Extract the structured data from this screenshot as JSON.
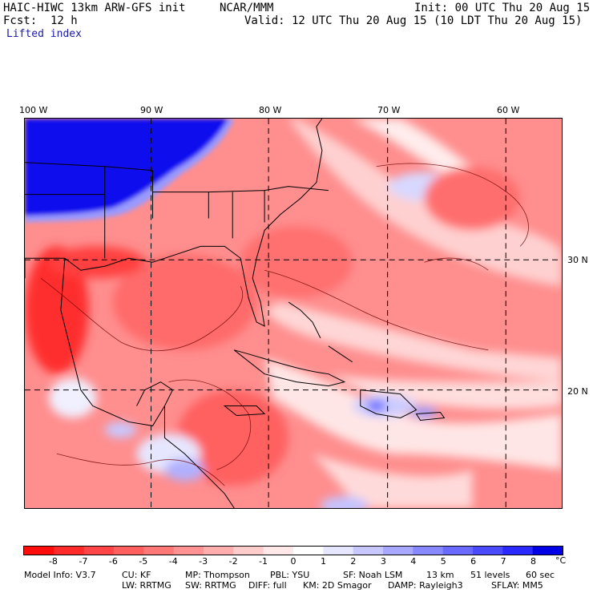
{
  "header": {
    "model": "HAIC-HIWC 13km ARW-GFS init",
    "org": "NCAR/MMM",
    "init": "Init: 00 UTC Thu 20 Aug 15",
    "fcst": "Fcst:  12 h",
    "valid": "Valid: 12 UTC Thu 20 Aug 15 (10 LDT Thu 20 Aug 15)",
    "field": "Lifted index"
  },
  "map": {
    "lon_labels": [
      "100 W",
      "90 W",
      "80 W",
      "70 W",
      "60 W"
    ],
    "lat_labels": [
      "30 N",
      "20 N"
    ]
  },
  "colorbar": {
    "labels": [
      "-8",
      "-7",
      "-6",
      "-5",
      "-4",
      "-3",
      "-2",
      "-1",
      "0",
      "1",
      "2",
      "3",
      "4",
      "5",
      "6",
      "7",
      "8"
    ],
    "unit": "°C",
    "colors": [
      "#ff0d0d",
      "#ff2a2a",
      "#ff4545",
      "#ff5f5f",
      "#ff7878",
      "#ff9292",
      "#ffadad",
      "#ffcccc",
      "#ffe8e8",
      "#ffffff",
      "#e6e6ff",
      "#c8c8ff",
      "#a8a8ff",
      "#8888ff",
      "#6a6aff",
      "#4a4aff",
      "#2a2aff",
      "#0000e8"
    ]
  },
  "footer": {
    "line1": [
      "Model Info: V3.7",
      "CU: KF",
      "MP: Thompson",
      "PBL: YSU",
      "SF: Noah LSM",
      "13 km",
      "51 levels",
      "60 sec"
    ],
    "line2": [
      "LW: RRTMG",
      "SW: RRTMG",
      "DIFF: full",
      "KM: 2D Smagor",
      "DAMP: Rayleigh3",
      "SFLAY: MM5"
    ]
  }
}
